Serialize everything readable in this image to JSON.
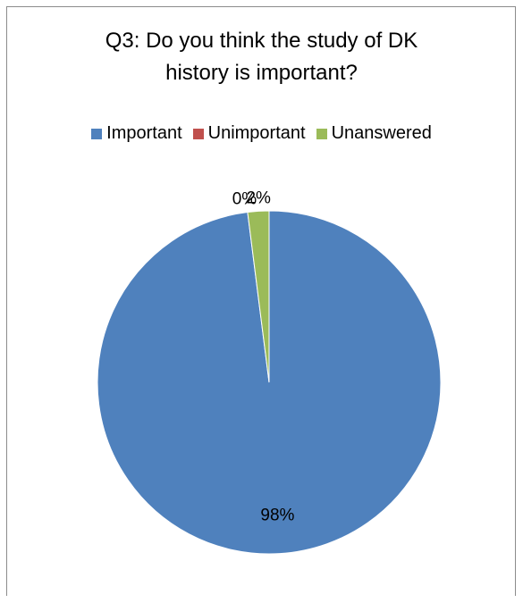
{
  "chart_data": {
    "type": "pie",
    "title": "Q3: Do you think the study of DK history is important?",
    "title_lines": [
      "Q3: Do you think the study of DK",
      "history is important?"
    ],
    "categories": [
      "Important",
      "Unimportant",
      "Unanswered"
    ],
    "values": [
      98,
      0,
      2
    ],
    "data_labels": [
      "98%",
      "0%",
      "2%"
    ],
    "colors": [
      "#4f81bd",
      "#c0504d",
      "#9bbb59"
    ],
    "legend_position": "top"
  }
}
